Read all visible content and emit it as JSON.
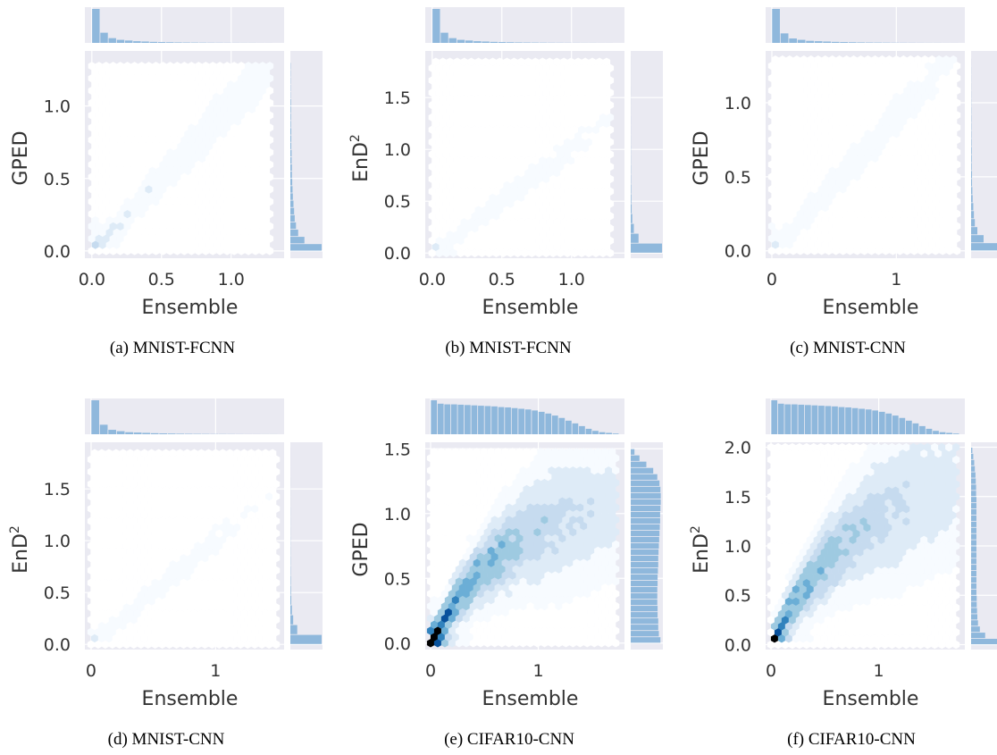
{
  "figure": {
    "colors": {
      "panel_bg": "#eaeaf2",
      "grid": "#ffffff",
      "hex_palette": [
        "#f7fbff",
        "#deebf7",
        "#c6dbef",
        "#9ecae1",
        "#6baed6",
        "#3182bd",
        "#08519c",
        "#08306b",
        "#000000"
      ],
      "hist_bar": "#8fb8dc"
    }
  },
  "chart_data": [
    {
      "type": "hexbin",
      "caption": "(a) MNIST-FCNN",
      "xlabel": "Ensemble",
      "ylabel": "GPED",
      "xticks": [
        "0.0",
        "0.5",
        "1.0"
      ],
      "yticks": [
        "0.0",
        "0.5",
        "1.0"
      ],
      "xlim": [
        -0.05,
        1.38
      ],
      "ylim": [
        -0.05,
        1.38
      ],
      "x_max": 1.3,
      "y_max": 1.3,
      "trend": "linear",
      "slope": 1.0,
      "spread": 0.08,
      "intensity": 0.12,
      "marg_x": [
        1.0,
        0.3,
        0.14,
        0.09,
        0.07,
        0.05,
        0.04,
        0.03,
        0.025,
        0.02,
        0.015,
        0.012,
        0.01,
        0.008,
        0.006,
        0.005,
        0.004,
        0.003,
        0.002,
        0.002,
        0.001,
        0.001
      ],
      "marg_y": [
        1.0,
        0.45,
        0.25,
        0.18,
        0.14,
        0.12,
        0.1,
        0.08,
        0.07,
        0.06,
        0.05,
        0.05,
        0.04,
        0.04,
        0.03,
        0.03,
        0.03,
        0.02,
        0.02,
        0.02,
        0.02,
        0.01,
        0.01,
        0.01,
        0.01,
        0.01
      ]
    },
    {
      "type": "hexbin",
      "caption": "(b) MNIST-FCNN",
      "xlabel": "Ensemble",
      "ylabel": "EnD",
      "ylabel_sup": "2",
      "xticks": [
        "0.0",
        "0.5",
        "1.0"
      ],
      "yticks": [
        "0.0",
        "0.5",
        "1.0",
        "1.5"
      ],
      "xlim": [
        -0.05,
        1.38
      ],
      "ylim": [
        -0.05,
        1.95
      ],
      "x_max": 1.3,
      "y_max": 1.9,
      "trend": "linear",
      "slope": 1.0,
      "spread": 0.1,
      "intensity": 0.05,
      "marg_x": [
        1.0,
        0.3,
        0.14,
        0.09,
        0.07,
        0.05,
        0.04,
        0.03,
        0.025,
        0.02,
        0.015,
        0.012,
        0.01,
        0.008,
        0.006,
        0.005,
        0.004,
        0.003,
        0.002,
        0.002,
        0.001,
        0.001
      ],
      "marg_y": [
        1.0,
        0.25,
        0.1,
        0.05,
        0.03,
        0.02,
        0.015,
        0.01,
        0.008,
        0.006,
        0.005,
        0.004,
        0.003,
        0.003,
        0.002,
        0.002,
        0.002,
        0.001,
        0.001,
        0.001
      ]
    },
    {
      "type": "hexbin",
      "caption": "(c) MNIST-CNN",
      "xlabel": "Ensemble",
      "ylabel": "GPED",
      "xticks": [
        "0",
        "1"
      ],
      "yticks": [
        "0.0",
        "0.5",
        "1.0"
      ],
      "xlim": [
        -0.05,
        1.55
      ],
      "ylim": [
        -0.05,
        1.35
      ],
      "x_max": 1.5,
      "y_max": 1.3,
      "trend": "linear",
      "slope": 0.9,
      "spread": 0.08,
      "intensity": 0.07,
      "marg_x": [
        1.0,
        0.28,
        0.13,
        0.09,
        0.06,
        0.05,
        0.04,
        0.03,
        0.025,
        0.02,
        0.015,
        0.012,
        0.01,
        0.008,
        0.006,
        0.005,
        0.004,
        0.003,
        0.002,
        0.002,
        0.001,
        0.001
      ],
      "marg_y": [
        1.0,
        0.4,
        0.2,
        0.12,
        0.09,
        0.07,
        0.05,
        0.04,
        0.03,
        0.03,
        0.02,
        0.02,
        0.02,
        0.015,
        0.012,
        0.01,
        0.01,
        0.008,
        0.006,
        0.005,
        0.004,
        0.003,
        0.003,
        0.002
      ]
    },
    {
      "type": "hexbin",
      "caption": "(d) MNIST-CNN",
      "xlabel": "Ensemble",
      "ylabel": "EnD",
      "ylabel_sup": "2",
      "xticks": [
        "0",
        "1"
      ],
      "yticks": [
        "0.0",
        "0.5",
        "1.0",
        "1.5"
      ],
      "xlim": [
        -0.05,
        1.55
      ],
      "ylim": [
        -0.05,
        1.95
      ],
      "x_max": 1.5,
      "y_max": 1.9,
      "trend": "linear",
      "slope": 1.0,
      "spread": 0.1,
      "intensity": 0.05,
      "marg_x": [
        1.0,
        0.28,
        0.13,
        0.09,
        0.06,
        0.05,
        0.04,
        0.03,
        0.025,
        0.02,
        0.015,
        0.012,
        0.01,
        0.008,
        0.006,
        0.005,
        0.004,
        0.003,
        0.002,
        0.002,
        0.001,
        0.001
      ],
      "marg_y": [
        1.0,
        0.22,
        0.09,
        0.05,
        0.03,
        0.02,
        0.015,
        0.01,
        0.008,
        0.006,
        0.005,
        0.004,
        0.003,
        0.003,
        0.002,
        0.002,
        0.002,
        0.001,
        0.001,
        0.001
      ]
    },
    {
      "type": "hexbin",
      "caption": "(e) CIFAR10-CNN",
      "xlabel": "Ensemble",
      "ylabel": "GPED",
      "xticks": [
        "0",
        "1"
      ],
      "yticks": [
        "0.0",
        "0.5",
        "1.0",
        "1.5"
      ],
      "xlim": [
        -0.05,
        1.8
      ],
      "ylim": [
        -0.05,
        1.55
      ],
      "x_max": 1.75,
      "y_max": 1.5,
      "trend": "saturating",
      "amp": 1.15,
      "rate": 1.4,
      "spread": 0.17,
      "intensity": 1.0,
      "marg_x": [
        1.0,
        0.9,
        0.88,
        0.88,
        0.87,
        0.86,
        0.85,
        0.84,
        0.83,
        0.82,
        0.8,
        0.79,
        0.77,
        0.75,
        0.73,
        0.7,
        0.66,
        0.61,
        0.55,
        0.48,
        0.4,
        0.32,
        0.24,
        0.16,
        0.1,
        0.06,
        0.04,
        0.02
      ],
      "marg_y": [
        0.95,
        0.9,
        0.88,
        0.88,
        0.86,
        0.86,
        0.85,
        0.85,
        0.85,
        0.86,
        0.86,
        0.87,
        0.88,
        0.88,
        0.89,
        0.9,
        0.91,
        0.92,
        0.93,
        0.94,
        0.94,
        0.95,
        0.96,
        0.96,
        0.95,
        0.92,
        0.85,
        0.72,
        0.5,
        0.28,
        0.12
      ]
    },
    {
      "type": "hexbin",
      "caption": "(f) CIFAR10-CNN",
      "xlabel": "Ensemble",
      "ylabel": "EnD",
      "ylabel_sup": "2",
      "xticks": [
        "0",
        "1"
      ],
      "yticks": [
        "0.0",
        "0.5",
        "1.0",
        "1.5",
        "2.0"
      ],
      "xlim": [
        -0.05,
        1.8
      ],
      "ylim": [
        -0.05,
        2.05
      ],
      "x_max": 1.75,
      "y_max": 2.0,
      "trend": "saturating",
      "amp": 1.85,
      "rate": 1.2,
      "spread": 0.25,
      "intensity": 0.85,
      "marg_x": [
        1.0,
        0.9,
        0.88,
        0.88,
        0.87,
        0.86,
        0.85,
        0.84,
        0.83,
        0.82,
        0.8,
        0.79,
        0.77,
        0.75,
        0.73,
        0.7,
        0.66,
        0.61,
        0.55,
        0.48,
        0.4,
        0.32,
        0.24,
        0.16,
        0.1,
        0.06,
        0.04,
        0.02
      ],
      "marg_y": [
        1.0,
        0.45,
        0.28,
        0.22,
        0.2,
        0.19,
        0.18,
        0.18,
        0.17,
        0.17,
        0.17,
        0.17,
        0.17,
        0.17,
        0.17,
        0.17,
        0.17,
        0.17,
        0.17,
        0.17,
        0.17,
        0.17,
        0.17,
        0.17,
        0.16,
        0.16,
        0.15,
        0.14,
        0.12,
        0.1,
        0.07,
        0.04
      ]
    }
  ]
}
